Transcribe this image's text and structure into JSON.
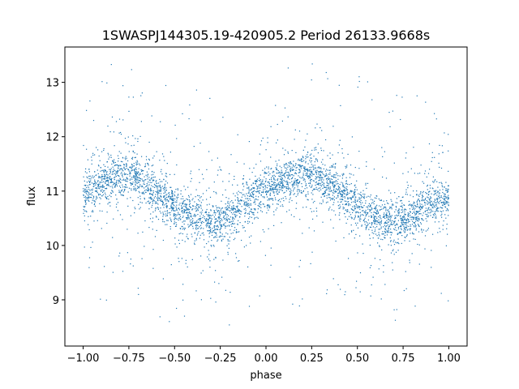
{
  "chart_data": {
    "type": "scatter",
    "title": "1SWASPJ144305.19-420905.2 Period 26133.9668s",
    "xlabel": "phase",
    "ylabel": "flux",
    "xlim": [
      -1.1,
      1.1
    ],
    "ylim": [
      8.15,
      13.65
    ],
    "xticks": [
      -1.0,
      -0.75,
      -0.5,
      -0.25,
      0.0,
      0.25,
      0.5,
      0.75,
      1.0
    ],
    "xtick_labels": [
      "−1.00",
      "−0.75",
      "−0.50",
      "−0.25",
      "0.00",
      "0.25",
      "0.50",
      "0.75",
      "1.00"
    ],
    "yticks": [
      9,
      10,
      11,
      12,
      13
    ],
    "ytick_labels": [
      "9",
      "10",
      "11",
      "12",
      "13"
    ],
    "grid": false,
    "marker_color": "#1f77b4",
    "series": [
      {
        "x": [
          -1.0,
          -0.9,
          -0.8,
          -0.75,
          -0.7,
          -0.6,
          -0.5,
          -0.4,
          -0.3,
          -0.25,
          -0.2,
          -0.1,
          0.0,
          0.1,
          0.2,
          0.25,
          0.3,
          0.4,
          0.5,
          0.6,
          0.7,
          0.75,
          0.8,
          0.9,
          1.0
        ],
        "y": [
          10.95,
          11.15,
          11.28,
          11.3,
          11.22,
          11.0,
          10.72,
          10.5,
          10.42,
          10.45,
          10.55,
          10.8,
          11.02,
          11.2,
          11.3,
          11.3,
          11.22,
          11.02,
          10.75,
          10.52,
          10.42,
          10.45,
          10.55,
          10.75,
          10.9
        ]
      }
    ]
  }
}
